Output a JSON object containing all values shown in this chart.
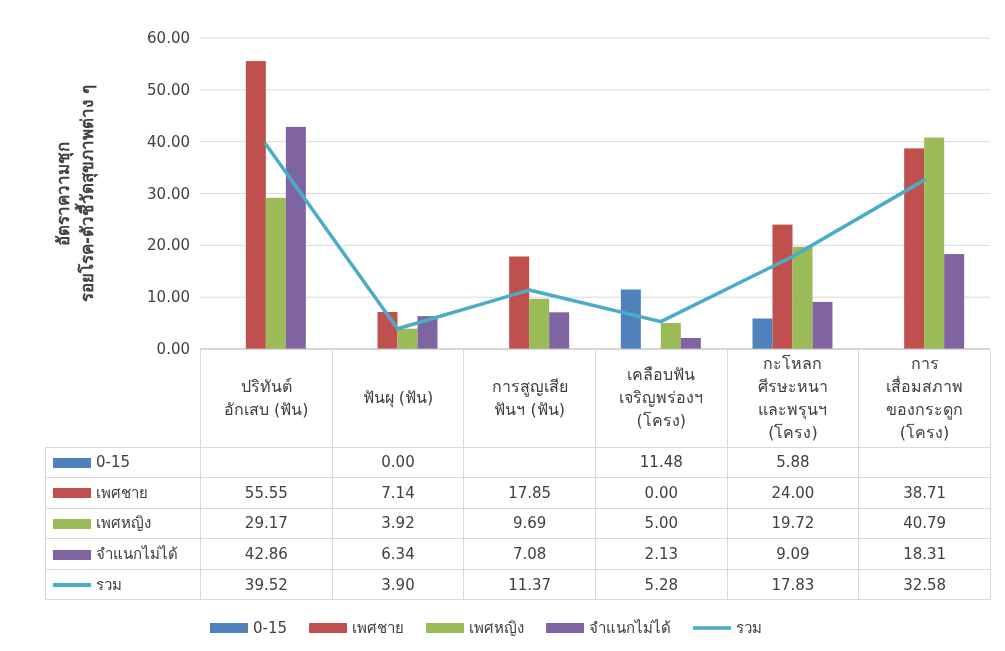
{
  "chart_data": {
    "type": "bar",
    "ylabel": "อัตราความชุก\nรอยโรค-ตัวชี้วัดสุขภาพต่าง ๆ",
    "categories": [
      "ปริทันต์\nอักเสบ (ฟัน)",
      "ฟันผุ (ฟัน)",
      "การสูญเสีย\nฟันฯ (ฟัน)",
      "เคลือบฟัน\nเจริญพร่องฯ\n(โครง)",
      "กะโหลก\nศีรษะหนา\nและพรุนฯ\n(โครง)",
      "การ\nเสื่อมสภาพ\nของกระดูก\n(โครง)"
    ],
    "series": [
      {
        "name": "0-15",
        "color": "#4f81bd",
        "values": [
          null,
          0.0,
          null,
          11.48,
          5.88,
          null
        ],
        "value_labels": [
          null,
          "0.00",
          null,
          "11.48",
          "5.88",
          null
        ]
      },
      {
        "name": "เพศชาย",
        "color": "#c0504d",
        "values": [
          55.55,
          7.14,
          17.85,
          0.0,
          24.0,
          38.71
        ],
        "value_labels": [
          "55.55",
          "7.14",
          "17.85",
          "0.00",
          "24.00",
          "38.71"
        ]
      },
      {
        "name": "เพศหญิง",
        "color": "#9bbb59",
        "values": [
          29.17,
          3.92,
          9.69,
          5.0,
          19.72,
          40.79
        ],
        "value_labels": [
          "29.17",
          "3.92",
          "9.69",
          "5.00",
          "19.72",
          "40.79"
        ]
      },
      {
        "name": "จำแนกไม่ได้",
        "color": "#8064a2",
        "values": [
          42.86,
          6.34,
          7.08,
          2.13,
          9.09,
          18.31
        ],
        "value_labels": [
          "42.86",
          "6.34",
          "7.08",
          "2.13",
          "9.09",
          "18.31"
        ]
      },
      {
        "name": "รวม",
        "type": "line",
        "color": "#4bacc6",
        "values": [
          39.52,
          3.9,
          11.37,
          5.28,
          17.83,
          32.58
        ],
        "value_labels": [
          "39.52",
          "3.90",
          "11.37",
          "5.28",
          "17.83",
          "32.58"
        ]
      }
    ],
    "ylim": [
      0,
      60
    ],
    "yticks": [
      {
        "value": 0,
        "label": "0.00"
      },
      {
        "value": 10,
        "label": "10.00"
      },
      {
        "value": 20,
        "label": "20.00"
      },
      {
        "value": 30,
        "label": "30.00"
      },
      {
        "value": 40,
        "label": "40.00"
      },
      {
        "value": 50,
        "label": "50.00"
      },
      {
        "value": 60,
        "label": "60.00"
      }
    ],
    "grid": "y",
    "legend": "bottom"
  }
}
